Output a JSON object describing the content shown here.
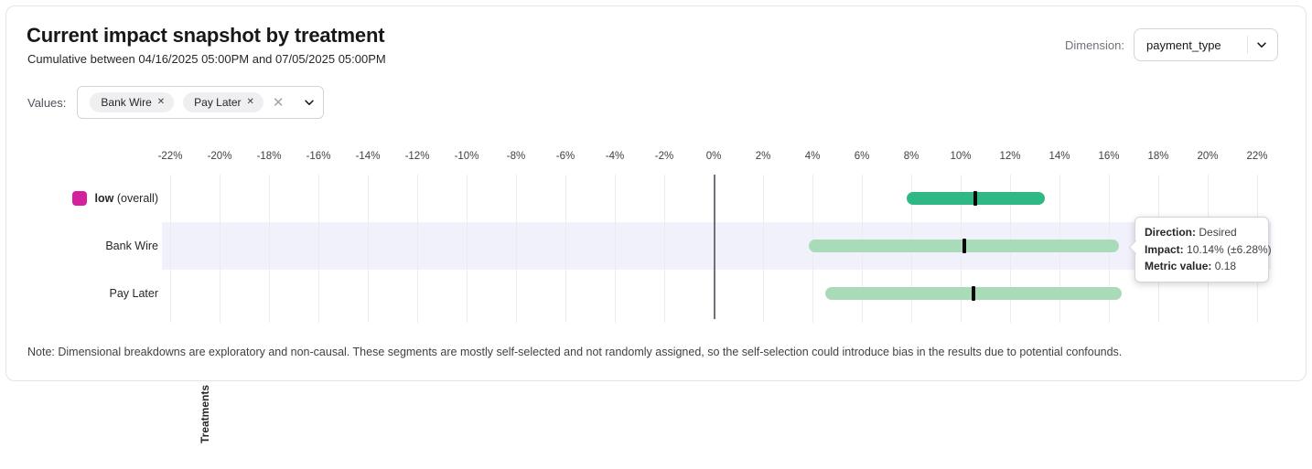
{
  "header": {
    "title": "Current impact snapshot by treatment",
    "subtitle": "Cumulative between 04/16/2025 05:00PM and 07/05/2025 05:00PM",
    "dimension_label": "Dimension:",
    "dimension_value": "payment_type"
  },
  "filters": {
    "values_label": "Values:",
    "chips": [
      {
        "label": "Bank Wire"
      },
      {
        "label": "Pay Later"
      }
    ]
  },
  "chart_data": {
    "type": "bar",
    "orientation": "horizontal-interval",
    "ylabel": "Treatments",
    "axis": {
      "min": -22,
      "max": 22,
      "step": 2,
      "suffix": "%"
    },
    "rows": [
      {
        "label": "low",
        "label_bold": true,
        "label_suffix": "(overall)",
        "legend_color": "#d4219c",
        "impact_pct": 10.6,
        "margin_pct": 2.8,
        "bar_color": "#2fb784",
        "highlighted": false
      },
      {
        "label": "Bank Wire",
        "label_bold": false,
        "label_suffix": "",
        "legend_color": "",
        "impact_pct": 10.14,
        "margin_pct": 6.28,
        "bar_color": "#a9dbb9",
        "highlighted": true
      },
      {
        "label": "Pay Later",
        "label_bold": false,
        "label_suffix": "",
        "legend_color": "",
        "impact_pct": 10.5,
        "margin_pct": 6.0,
        "bar_color": "#a9dbb9",
        "highlighted": false
      }
    ],
    "colors": {
      "grid": "#ececee",
      "zero_line": "#71717a",
      "highlight_band": "#f1f1fc",
      "center_tick": "#0a0a0a"
    }
  },
  "tooltip": {
    "rows": [
      {
        "label": "Direction:",
        "value": "Desired"
      },
      {
        "label": "Impact:",
        "value": "10.14% (±6.28%)"
      },
      {
        "label": "Metric value:",
        "value": "0.18"
      }
    ]
  },
  "note": "Note: Dimensional breakdowns are exploratory and non-causal. These segments are mostly self-selected and not randomly assigned, so the self-selection could introduce bias in the results due to potential confounds."
}
